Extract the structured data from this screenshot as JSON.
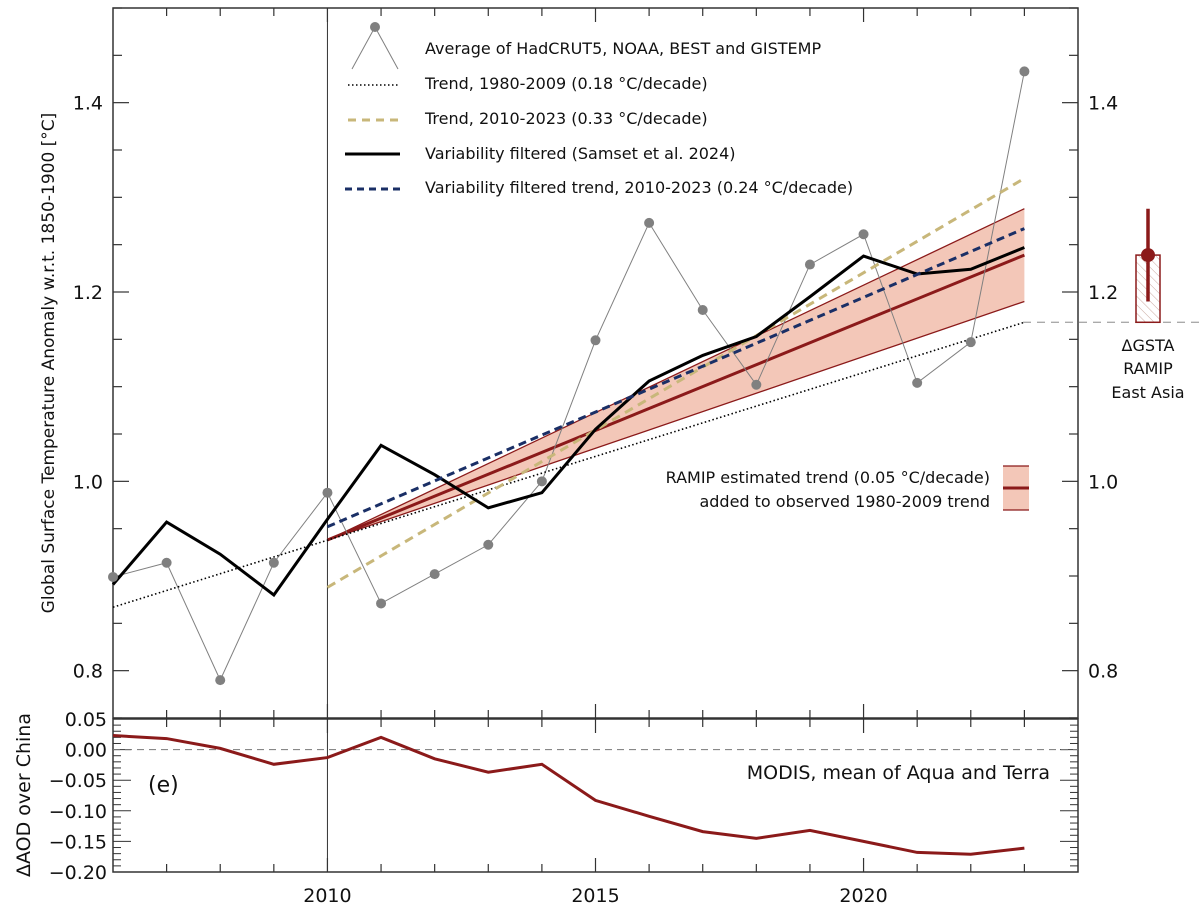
{
  "colors": {
    "obs": "#808080",
    "filtered": "#000000",
    "trend_early": "#000000",
    "trend_late": "#c8b77a",
    "filtered_trend": "#1a2f66",
    "ramip": "#8b1a1a",
    "ramip_fill": "#f3c7b8"
  },
  "chart_data": [
    {
      "type": "line",
      "ylabel": "Global Surface Temperature Anomaly w.r.t. 1850-1900 [°C]",
      "xlim": [
        2006,
        2024
      ],
      "ylim": [
        0.75,
        1.5
      ],
      "xticks": [
        2010,
        2015,
        2020
      ],
      "yticks": [
        0.8,
        1.0,
        1.2,
        1.4
      ],
      "ytick_labels": [
        "0.8",
        "1.0",
        "1.2",
        "1.4"
      ],
      "grid": false,
      "legend_position": "top-center",
      "series": [
        {
          "name": "Average of HadCRUT5, NOAA, BEST and GISTEMP",
          "style": "grey markers with thin line",
          "x": [
            2006,
            2007,
            2008,
            2009,
            2010,
            2011,
            2012,
            2013,
            2014,
            2015,
            2016,
            2017,
            2018,
            2019,
            2020,
            2021,
            2022,
            2023
          ],
          "y": [
            0.899,
            0.914,
            0.79,
            0.914,
            0.988,
            0.871,
            0.902,
            0.933,
            1.0,
            1.149,
            1.273,
            1.181,
            1.102,
            1.229,
            1.261,
            1.104,
            1.147,
            1.433
          ]
        },
        {
          "name": "Trend, 1980-2009 (0.18 °C/decade)",
          "style": "dotted black",
          "x": [
            2006,
            2023
          ],
          "y": [
            0.867,
            1.168
          ]
        },
        {
          "name": "Trend, 2010-2023 (0.33 °C/decade)",
          "style": "dashed tan",
          "x": [
            2010,
            2023
          ],
          "y": [
            0.888,
            1.32
          ]
        },
        {
          "name": "Variability filtered (Samset et al. 2024)",
          "style": "solid black",
          "x": [
            2006,
            2007,
            2008,
            2009,
            2010,
            2011,
            2012,
            2013,
            2014,
            2015,
            2016,
            2017,
            2018,
            2019,
            2020,
            2021,
            2022,
            2023
          ],
          "y": [
            0.891,
            0.957,
            0.923,
            0.88,
            0.96,
            1.038,
            1.007,
            0.972,
            0.988,
            1.055,
            1.106,
            1.133,
            1.153,
            1.195,
            1.238,
            1.219,
            1.224,
            1.247
          ]
        },
        {
          "name": "Variability filtered trend, 2010-2023 (0.24 °C/decade)",
          "style": "dashed navy",
          "x": [
            2010,
            2023
          ],
          "y": [
            0.952,
            1.267
          ]
        }
      ],
      "ramip_band": {
        "label_line1": "RAMIP estimated trend (0.05 °C/decade)",
        "label_line2": "added to observed 1980-2009 trend",
        "x": [
          2010,
          2023
        ],
        "center": [
          0.938,
          1.239
        ],
        "upper": [
          0.938,
          1.288
        ],
        "lower": [
          0.938,
          1.19
        ]
      },
      "gsta_marker": {
        "label_lines": [
          "ΔGSTA",
          "RAMIP",
          "East Asia"
        ],
        "base": 1.168,
        "value": 1.239,
        "err_low": 1.19,
        "err_high": 1.288
      }
    },
    {
      "type": "line",
      "panel_label": "(e)",
      "ylabel": "ΔAOD over China",
      "annotation": "MODIS, mean of Aqua and Terra",
      "xlim": [
        2006,
        2024
      ],
      "ylim": [
        -0.2,
        0.05
      ],
      "xticks": [
        2010,
        2015,
        2020
      ],
      "xtick_labels": [
        "2010",
        "2015",
        "2020"
      ],
      "yticks": [
        0.05,
        0.0,
        -0.05,
        -0.1,
        -0.15,
        -0.2
      ],
      "ytick_labels": [
        "0.05",
        "0.00",
        "−0.05",
        "−0.10",
        "−0.15",
        "−0.20"
      ],
      "series": [
        {
          "style": "solid dark red",
          "x": [
            2006,
            2007,
            2008,
            2009,
            2010,
            2011,
            2012,
            2013,
            2014,
            2015,
            2016,
            2017,
            2018,
            2019,
            2020,
            2021,
            2022,
            2023
          ],
          "y": [
            0.023,
            0.018,
            0.002,
            -0.024,
            -0.013,
            0.02,
            -0.015,
            -0.037,
            -0.024,
            -0.083,
            -0.109,
            -0.134,
            -0.145,
            -0.132,
            -0.15,
            -0.168,
            -0.171,
            -0.161
          ]
        }
      ]
    }
  ]
}
